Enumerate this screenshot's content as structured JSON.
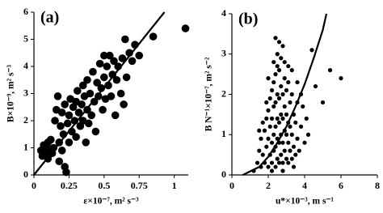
{
  "chart_data": [
    {
      "type": "scatter",
      "label": "(a)",
      "xlabel": "ε×10⁻⁷, m² s⁻³",
      "ylabel": "B×10⁻⁹, m² s⁻³",
      "xlim": [
        0,
        1.1
      ],
      "ylim": [
        0,
        6
      ],
      "xticks": [
        0,
        0.25,
        0.5,
        0.75,
        1
      ],
      "yticks": [
        0,
        1,
        2,
        3,
        4,
        5,
        6
      ],
      "series": [
        {
          "type": "scatter",
          "color": "#000000",
          "x": [
            0.05,
            0.06,
            0.07,
            0.08,
            0.09,
            0.1,
            0.1,
            0.11,
            0.12,
            0.13,
            0.14,
            0.15,
            0.16,
            0.17,
            0.18,
            0.18,
            0.19,
            0.2,
            0.2,
            0.21,
            0.22,
            0.22,
            0.23,
            0.24,
            0.25,
            0.25,
            0.26,
            0.27,
            0.28,
            0.29,
            0.3,
            0.3,
            0.31,
            0.32,
            0.33,
            0.34,
            0.35,
            0.35,
            0.36,
            0.37,
            0.38,
            0.38,
            0.39,
            0.4,
            0.41,
            0.42,
            0.43,
            0.44,
            0.45,
            0.46,
            0.47,
            0.48,
            0.49,
            0.5,
            0.5,
            0.51,
            0.52,
            0.53,
            0.54,
            0.55,
            0.56,
            0.57,
            0.58,
            0.59,
            0.6,
            0.62,
            0.63,
            0.64,
            0.65,
            0.66,
            0.68,
            0.7,
            0.72,
            0.75,
            0.85,
            1.08
          ],
          "values": [
            0.9,
            0.7,
            1.1,
            0.8,
            1.0,
            0.6,
            1.2,
            0.9,
            1.3,
            0.8,
            1.0,
            2.0,
            2.4,
            2.9,
            1.2,
            0.5,
            1.8,
            2.3,
            0.9,
            1.5,
            2.6,
            0.3,
            0.1,
            1.9,
            2.2,
            1.2,
            2.8,
            1.6,
            2.5,
            2.0,
            2.7,
            1.4,
            3.1,
            2.3,
            1.8,
            2.6,
            3.3,
            2.0,
            2.9,
            1.2,
            3.5,
            2.4,
            1.9,
            3.0,
            2.2,
            3.8,
            2.7,
            1.6,
            3.4,
            2.9,
            4.1,
            3.2,
            2.4,
            4.4,
            3.6,
            2.8,
            4.0,
            3.3,
            4.4,
            2.9,
            3.7,
            4.2,
            2.2,
            3.5,
            4.0,
            3.0,
            4.3,
            2.6,
            5.0,
            3.6,
            4.5,
            4.2,
            4.8,
            4.4,
            5.1,
            5.4
          ]
        },
        {
          "type": "line",
          "color": "#000000",
          "x": [
            0,
            0.93
          ],
          "values": [
            0,
            6
          ]
        }
      ]
    },
    {
      "type": "scatter",
      "label": "(b)",
      "xlabel": "u*×10⁻³, m s⁻¹",
      "ylabel": "B N⁻¹×10⁻⁷, m² s⁻²",
      "xlim": [
        0,
        8
      ],
      "ylim": [
        0,
        4
      ],
      "xticks": [
        0,
        2,
        4,
        6,
        8
      ],
      "yticks": [
        0,
        1,
        2,
        3,
        4
      ],
      "series": [
        {
          "type": "scatter",
          "color": "#000000",
          "x": [
            1.2,
            1.4,
            1.5,
            1.6,
            1.6,
            1.7,
            1.8,
            1.8,
            1.9,
            1.9,
            2.0,
            2.0,
            2.0,
            2.1,
            2.1,
            2.1,
            2.2,
            2.2,
            2.2,
            2.2,
            2.3,
            2.3,
            2.3,
            2.3,
            2.4,
            2.4,
            2.4,
            2.4,
            2.4,
            2.5,
            2.5,
            2.5,
            2.5,
            2.5,
            2.6,
            2.6,
            2.6,
            2.6,
            2.6,
            2.7,
            2.7,
            2.7,
            2.7,
            2.7,
            2.8,
            2.8,
            2.8,
            2.8,
            2.8,
            2.9,
            2.9,
            2.9,
            2.9,
            3.0,
            3.0,
            3.0,
            3.0,
            3.1,
            3.1,
            3.1,
            3.1,
            3.2,
            3.2,
            3.2,
            3.3,
            3.3,
            3.3,
            3.4,
            3.4,
            3.5,
            3.5,
            3.6,
            3.6,
            3.7,
            3.8,
            3.9,
            4.0,
            4.1,
            4.2,
            4.4,
            4.6,
            5.0,
            5.4,
            6.0,
            1.5,
            1.7,
            1.9,
            2.0,
            2.3,
            2.5,
            2.6,
            2.9,
            3.1,
            3.3,
            3.6,
            3.8,
            2.2,
            2.8,
            3.4,
            2.4
          ],
          "values": [
            0.1,
            0.3,
            0.6,
            0.2,
            0.9,
            0.5,
            0.3,
            1.1,
            0.7,
            1.4,
            0.2,
            0.9,
            1.6,
            0.5,
            1.2,
            1.9,
            0.3,
            0.8,
            1.4,
            2.1,
            0.6,
            1.0,
            1.7,
            2.3,
            0.2,
            0.7,
            1.2,
            1.8,
            2.5,
            0.4,
            0.9,
            1.4,
            2.0,
            2.7,
            0.3,
            0.8,
            1.3,
            1.9,
            2.6,
            0.5,
            1.0,
            1.5,
            2.2,
            2.9,
            0.3,
            0.8,
            1.4,
            2.0,
            3.2,
            0.6,
            1.1,
            1.7,
            2.4,
            0.4,
            1.0,
            1.5,
            2.1,
            0.3,
            0.8,
            1.3,
            2.3,
            0.6,
            1.2,
            1.8,
            0.4,
            1.0,
            2.0,
            0.7,
            1.5,
            0.5,
            1.3,
            0.9,
            1.8,
            0.6,
            1.2,
            1.7,
            0.8,
            1.4,
            1.0,
            3.1,
            2.2,
            1.8,
            2.6,
            2.4,
            1.1,
            1.3,
            1.8,
            2.4,
            2.8,
            3.0,
            3.3,
            2.8,
            2.7,
            2.6,
            2.3,
            2.0,
            0.1,
            0.1,
            0.2,
            3.4
          ]
        },
        {
          "type": "line",
          "color": "#000000",
          "x": [
            0.6,
            1.5,
            2.0,
            2.5,
            3.0,
            3.5,
            4.0,
            4.5,
            5.0,
            5.2
          ],
          "values": [
            0,
            0.2,
            0.45,
            0.8,
            1.2,
            1.7,
            2.25,
            2.9,
            3.6,
            4.0
          ]
        }
      ]
    }
  ]
}
